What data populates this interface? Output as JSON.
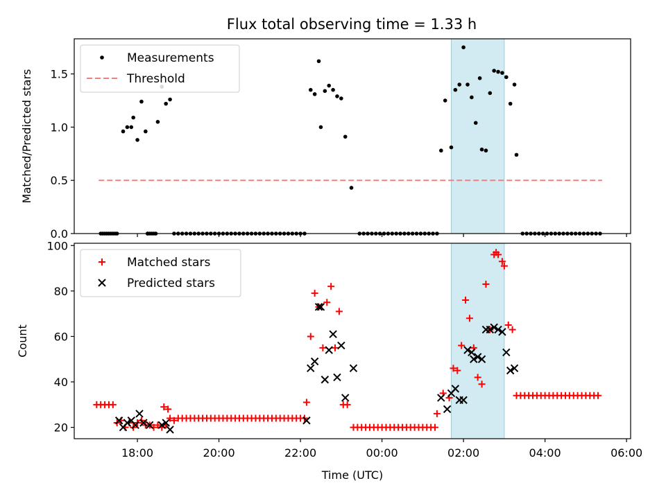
{
  "chart_data": [
    {
      "panel": "top",
      "type": "scatter",
      "title": "Flux total observing time = 1.33 h",
      "xlabel": "",
      "ylabel": "Matched/Predicted stars",
      "xlim": [
        16.45,
        30.1
      ],
      "ylim": [
        0,
        1.83
      ],
      "yticks": [
        0.0,
        0.5,
        1.0,
        1.5
      ],
      "ytick_labels": [
        "0.0",
        "0.5",
        "1.0",
        "1.5"
      ],
      "legend": {
        "placement": "upper-left",
        "entries": [
          "Measurements",
          "Threshold"
        ]
      },
      "highlight_span": {
        "from": 25.7,
        "to": 27.0,
        "color": "#add8e6"
      },
      "threshold": {
        "name": "Threshold",
        "value": 0.5,
        "x_from": 17.05,
        "x_to": 29.4,
        "color": "#f08080"
      },
      "series": [
        {
          "name": "Measurements",
          "color": "#000000",
          "marker": "dot",
          "points": [
            [
              17.1,
              0
            ],
            [
              17.15,
              0
            ],
            [
              17.2,
              0
            ],
            [
              17.25,
              0
            ],
            [
              17.3,
              0
            ],
            [
              17.35,
              0
            ],
            [
              17.4,
              0
            ],
            [
              17.45,
              0
            ],
            [
              17.5,
              0
            ],
            [
              17.65,
              0.96
            ],
            [
              17.75,
              1.0
            ],
            [
              17.85,
              1.0
            ],
            [
              17.9,
              1.09
            ],
            [
              18.0,
              0.88
            ],
            [
              18.1,
              1.24
            ],
            [
              18.2,
              0.96
            ],
            [
              18.25,
              0
            ],
            [
              18.3,
              0
            ],
            [
              18.4,
              0
            ],
            [
              18.5,
              1.05
            ],
            [
              18.6,
              1.38
            ],
            [
              18.7,
              1.22
            ],
            [
              18.8,
              1.26
            ],
            [
              22.25,
              1.35
            ],
            [
              22.35,
              1.31
            ],
            [
              22.45,
              1.62
            ],
            [
              22.5,
              1.0
            ],
            [
              22.6,
              1.34
            ],
            [
              22.7,
              1.39
            ],
            [
              22.8,
              1.35
            ],
            [
              22.9,
              1.29
            ],
            [
              23.0,
              1.27
            ],
            [
              23.1,
              0.91
            ],
            [
              23.25,
              0.43
            ],
            [
              25.45,
              0.78
            ],
            [
              25.55,
              1.25
            ],
            [
              25.7,
              0.81
            ],
            [
              25.8,
              1.35
            ],
            [
              25.9,
              1.4
            ],
            [
              26.0,
              1.75
            ],
            [
              26.1,
              1.4
            ],
            [
              26.2,
              1.28
            ],
            [
              26.3,
              1.04
            ],
            [
              26.4,
              1.46
            ],
            [
              26.45,
              0.79
            ],
            [
              26.55,
              0.78
            ],
            [
              26.65,
              1.32
            ],
            [
              26.75,
              1.53
            ],
            [
              26.85,
              1.52
            ],
            [
              26.95,
              1.51
            ],
            [
              27.05,
              1.47
            ],
            [
              27.15,
              1.22
            ],
            [
              27.25,
              1.4
            ],
            [
              27.3,
              0.74
            ]
          ],
          "zero_runs": [
            {
              "from": 18.25,
              "to": 18.45,
              "step": 0.1
            },
            {
              "from": 18.9,
              "to": 22.1,
              "step": 0.1
            },
            {
              "from": 23.45,
              "to": 25.35,
              "step": 0.1
            },
            {
              "from": 27.45,
              "to": 29.4,
              "step": 0.1
            }
          ]
        }
      ]
    },
    {
      "panel": "bottom",
      "type": "scatter",
      "title": "",
      "xlabel": "Time (UTC)",
      "ylabel": "Count",
      "xlim": [
        16.45,
        30.1
      ],
      "ylim": [
        15,
        101
      ],
      "xticks": [
        18,
        20,
        22,
        24,
        26,
        28,
        30
      ],
      "xtick_labels": [
        "18:00",
        "20:00",
        "22:00",
        "00:00",
        "02:00",
        "04:00",
        "06:00"
      ],
      "yticks": [
        20,
        40,
        60,
        80,
        100
      ],
      "ytick_labels": [
        "20",
        "40",
        "60",
        "80",
        "100"
      ],
      "legend": {
        "placement": "upper-left",
        "entries": [
          "Matched stars",
          "Predicted stars"
        ]
      },
      "highlight_span": {
        "from": 25.7,
        "to": 27.0,
        "color": "#add8e6"
      },
      "series": [
        {
          "name": "Matched stars",
          "color": "#ff0000",
          "marker": "plus",
          "points": [
            [
              17.0,
              30
            ],
            [
              17.1,
              30
            ],
            [
              17.2,
              30
            ],
            [
              17.3,
              30
            ],
            [
              17.4,
              30
            ],
            [
              17.5,
              22
            ],
            [
              17.6,
              23
            ],
            [
              17.7,
              20
            ],
            [
              17.8,
              22
            ],
            [
              17.9,
              20
            ],
            [
              18.0,
              22
            ],
            [
              18.1,
              23
            ],
            [
              18.2,
              21
            ],
            [
              18.3,
              21
            ],
            [
              18.4,
              20
            ],
            [
              18.5,
              21
            ],
            [
              18.6,
              20
            ],
            [
              18.7,
              21
            ],
            [
              18.8,
              24
            ],
            [
              18.9,
              23
            ],
            [
              18.65,
              29
            ],
            [
              18.75,
              28
            ],
            [
              22.15,
              31
            ],
            [
              22.25,
              60
            ],
            [
              22.35,
              79
            ],
            [
              22.45,
              73
            ],
            [
              22.55,
              55
            ],
            [
              22.65,
              75
            ],
            [
              22.75,
              82
            ],
            [
              22.85,
              55
            ],
            [
              22.95,
              71
            ],
            [
              23.05,
              30
            ],
            [
              23.15,
              30
            ],
            [
              25.35,
              26
            ],
            [
              25.5,
              35
            ],
            [
              25.65,
              33
            ],
            [
              25.75,
              46
            ],
            [
              25.85,
              45
            ],
            [
              25.95,
              56
            ],
            [
              26.05,
              76
            ],
            [
              26.15,
              68
            ],
            [
              26.25,
              55
            ],
            [
              26.35,
              42
            ],
            [
              26.45,
              39
            ],
            [
              26.55,
              83
            ],
            [
              26.65,
              63
            ],
            [
              26.75,
              96
            ],
            [
              26.8,
              97
            ],
            [
              26.85,
              96
            ],
            [
              26.95,
              93
            ],
            [
              27.0,
              91
            ],
            [
              27.1,
              65
            ],
            [
              27.2,
              63
            ]
          ],
          "flat_runs": [
            {
              "from": 19.0,
              "to": 22.1,
              "step": 0.1,
              "value": 24
            },
            {
              "from": 23.3,
              "to": 25.3,
              "step": 0.1,
              "value": 20
            },
            {
              "from": 27.3,
              "to": 29.35,
              "step": 0.1,
              "value": 34
            }
          ]
        },
        {
          "name": "Predicted stars",
          "color": "#000000",
          "marker": "x",
          "points": [
            [
              17.55,
              23
            ],
            [
              17.65,
              20
            ],
            [
              17.75,
              22
            ],
            [
              17.85,
              23
            ],
            [
              17.95,
              21
            ],
            [
              18.05,
              26
            ],
            [
              18.15,
              22
            ],
            [
              18.3,
              21
            ],
            [
              18.6,
              21
            ],
            [
              18.7,
              22
            ],
            [
              18.8,
              19
            ],
            [
              22.15,
              23
            ],
            [
              22.25,
              46
            ],
            [
              22.35,
              49
            ],
            [
              22.45,
              73
            ],
            [
              22.5,
              73
            ],
            [
              22.6,
              41
            ],
            [
              22.7,
              54
            ],
            [
              22.8,
              61
            ],
            [
              22.9,
              42
            ],
            [
              23.0,
              56
            ],
            [
              23.1,
              33
            ],
            [
              23.3,
              46
            ],
            [
              25.45,
              33
            ],
            [
              25.6,
              28
            ],
            [
              25.7,
              35
            ],
            [
              25.8,
              37
            ],
            [
              25.9,
              32
            ],
            [
              26.0,
              32
            ],
            [
              26.1,
              54
            ],
            [
              26.2,
              53
            ],
            [
              26.25,
              50
            ],
            [
              26.35,
              51
            ],
            [
              26.45,
              50
            ],
            [
              26.55,
              63
            ],
            [
              26.65,
              63
            ],
            [
              26.75,
              64
            ],
            [
              26.85,
              63
            ],
            [
              26.95,
              62
            ],
            [
              27.05,
              53
            ],
            [
              27.15,
              45
            ],
            [
              27.25,
              46
            ]
          ]
        }
      ]
    }
  ]
}
